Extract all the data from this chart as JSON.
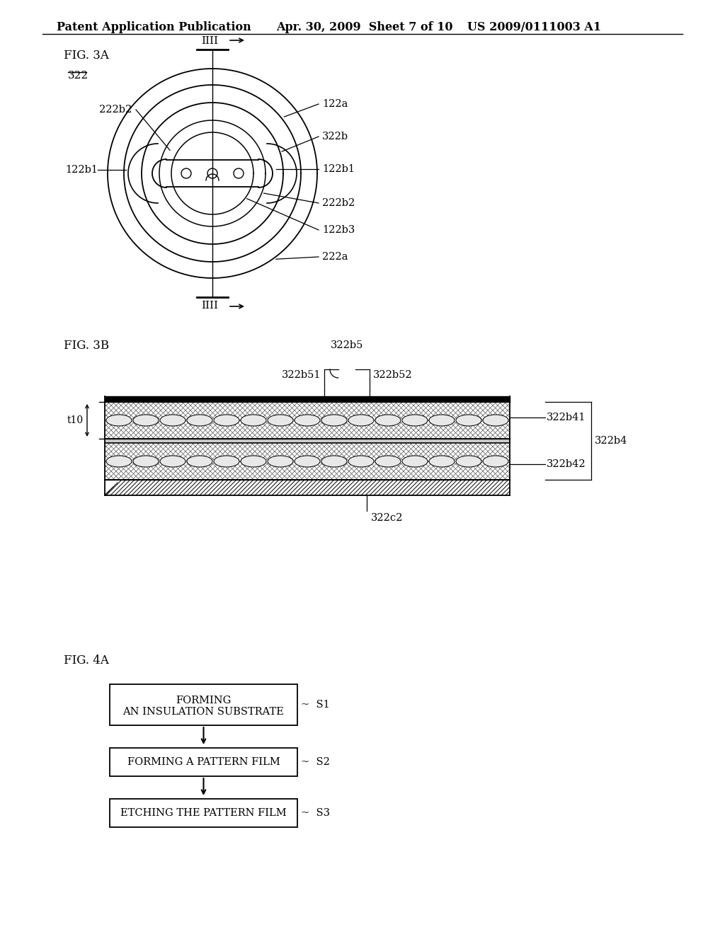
{
  "bg_color": "#ffffff",
  "fig3a_label": "FIG. 3A",
  "fig3b_label": "FIG. 3B",
  "fig4a_label": "FIG. 4A",
  "header_left": "Patent Application Publication",
  "header_mid": "Apr. 30, 2009  Sheet 7 of 10",
  "header_right": "US 2009/0111003 A1",
  "flow_boxes": [
    "FORMING\nAN INSULATION SUBSTRATE",
    "FORMING A PATTERN FILM",
    "ETCHING THE PATTERN FILM"
  ],
  "flow_labels": [
    "S1",
    "S2",
    "S3"
  ]
}
